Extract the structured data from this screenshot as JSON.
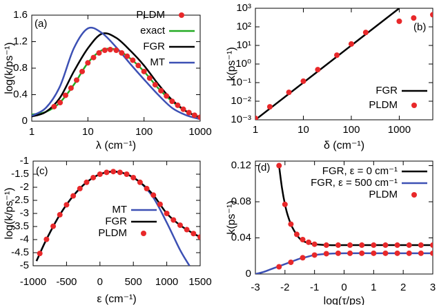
{
  "chart_data": [
    {
      "type": "line",
      "panel_label": "(a)",
      "xlabel": "λ (cm⁻¹)",
      "ylabel": "log(k/ps⁻¹)",
      "xscale": "log",
      "xlim": [
        1,
        1000
      ],
      "xticks": [
        1,
        10,
        100,
        1000
      ],
      "ylim": [
        0,
        1.6
      ],
      "yticks": [
        0,
        0.4,
        0.8,
        1.2,
        1.6
      ],
      "legend": "top-right",
      "series": [
        {
          "name": "PLDM",
          "mode": "markers",
          "color": "#e8282a",
          "x": [
            2.5,
            3.2,
            4,
            5,
            6.3,
            7.9,
            10,
            12.6,
            15.8,
            20,
            25,
            32,
            40,
            50,
            63,
            79,
            100,
            126,
            158,
            200,
            251,
            316,
            398,
            501,
            631,
            794,
            1000
          ],
          "values": [
            0.22,
            0.28,
            0.39,
            0.5,
            0.62,
            0.75,
            0.88,
            0.96,
            1.03,
            1.07,
            1.08,
            1.07,
            1.03,
            0.98,
            0.92,
            0.84,
            0.75,
            0.65,
            0.55,
            0.46,
            0.38,
            0.3,
            0.24,
            0.18,
            0.13,
            0.09,
            0.06
          ]
        },
        {
          "name": "exact",
          "mode": "lines",
          "color": "#22aa22",
          "x": [
            1,
            1.78,
            3.16,
            5.62,
            10,
            17.8,
            31.6,
            56.2,
            100,
            178,
            316,
            562,
            1000
          ],
          "values": [
            0.1,
            0.14,
            0.28,
            0.55,
            0.88,
            1.07,
            1.08,
            0.95,
            0.75,
            0.5,
            0.3,
            0.15,
            0.06
          ]
        },
        {
          "name": "FGR",
          "mode": "lines",
          "color": "#000000",
          "x": [
            1,
            1.78,
            3.16,
            5.62,
            10,
            17.8,
            31.6,
            56.2,
            100,
            178,
            316,
            562,
            1000
          ],
          "values": [
            0.07,
            0.14,
            0.35,
            0.75,
            1.1,
            1.32,
            1.26,
            1.07,
            0.84,
            0.56,
            0.32,
            0.15,
            0.05
          ]
        },
        {
          "name": "MT",
          "mode": "lines",
          "color": "#3c50b4",
          "x": [
            1,
            1.78,
            3.16,
            5.62,
            10,
            17.8,
            31.6,
            56.2,
            100,
            178,
            316,
            562,
            1000
          ],
          "values": [
            0.08,
            0.2,
            0.52,
            1.1,
            1.4,
            1.33,
            1.12,
            0.87,
            0.63,
            0.4,
            0.2,
            0.09,
            0.03
          ]
        }
      ]
    },
    {
      "type": "line",
      "panel_label": "(b)",
      "xlabel": "δ (cm⁻¹)",
      "ylabel": "k(ps⁻¹)",
      "xscale": "log",
      "yscale": "log",
      "xlim": [
        1,
        5000
      ],
      "xticks": [
        1,
        10,
        100,
        1000
      ],
      "ylim": [
        0.001,
        1000
      ],
      "yticks": [
        {
          "value": 0.001,
          "label": "10⁻³"
        },
        {
          "value": 0.01,
          "label": "10⁻²"
        },
        {
          "value": 0.1,
          "label": "10⁻¹"
        },
        {
          "value": 1,
          "label": "10⁰"
        },
        {
          "value": 10,
          "label": "10¹"
        },
        {
          "value": 100,
          "label": "10²"
        },
        {
          "value": 1000,
          "label": "10³"
        }
      ],
      "legend": "bottom-right",
      "series": [
        {
          "name": "FGR",
          "mode": "lines",
          "color": "#000000",
          "x": [
            1,
            1000
          ],
          "values": [
            0.001,
            1000
          ]
        },
        {
          "name": "PLDM",
          "mode": "markers",
          "color": "#e8282a",
          "x": [
            1,
            2,
            5,
            10,
            20,
            50,
            100,
            200,
            1000,
            2000,
            5000
          ],
          "values": [
            0.0012,
            0.005,
            0.03,
            0.12,
            0.5,
            3,
            12,
            50,
            200,
            300,
            450
          ]
        }
      ]
    },
    {
      "type": "line",
      "panel_label": "(c)",
      "xlabel": "ε (cm⁻¹)",
      "ylabel": "log(k/ps⁻¹)",
      "xlim": [
        -1000,
        1500
      ],
      "xticks": [
        -1000,
        -500,
        0,
        500,
        1000,
        1500
      ],
      "ylim": [
        -5,
        -1
      ],
      "yticks": [
        -1,
        -1.5,
        -2,
        -2.5,
        -3,
        -3.5,
        -4,
        -4.5,
        -5
      ],
      "legend": "bottom-left",
      "series": [
        {
          "name": "MT",
          "mode": "lines",
          "color": "#3c50b4",
          "x": [
            -950,
            -800,
            -600,
            -400,
            -200,
            0,
            200,
            400,
            600,
            800,
            1000,
            1200,
            1340
          ],
          "values": [
            -4.82,
            -3.99,
            -3.05,
            -2.33,
            -1.81,
            -1.5,
            -1.4,
            -1.5,
            -1.81,
            -2.4,
            -3.35,
            -4.4,
            -5
          ]
        },
        {
          "name": "FGR",
          "mode": "lines",
          "color": "#000000",
          "x": [
            -950,
            -800,
            -600,
            -400,
            -200,
            0,
            200,
            400,
            600,
            800,
            1000,
            1200,
            1400,
            1500
          ],
          "values": [
            -4.82,
            -3.99,
            -3.05,
            -2.33,
            -1.81,
            -1.5,
            -1.4,
            -1.5,
            -1.81,
            -2.3,
            -3,
            -3.45,
            -3.77,
            -3.9
          ]
        },
        {
          "name": "PLDM",
          "mode": "markers",
          "color": "#e8282a",
          "x": [
            -900,
            -800,
            -700,
            -600,
            -500,
            -400,
            -300,
            -200,
            -100,
            0,
            100,
            200,
            300,
            400,
            500,
            600,
            700,
            800,
            900,
            1000,
            1100,
            1200,
            1300,
            1400,
            1500
          ],
          "values": [
            -4.53,
            -3.99,
            -3.49,
            -3.05,
            -2.67,
            -2.33,
            -2.05,
            -1.81,
            -1.63,
            -1.5,
            -1.43,
            -1.4,
            -1.43,
            -1.5,
            -1.63,
            -1.81,
            -2.05,
            -2.3,
            -2.65,
            -3,
            -3.25,
            -3.45,
            -3.62,
            -3.77,
            -3.9
          ]
        }
      ]
    },
    {
      "type": "line",
      "panel_label": "(d)",
      "xlabel": "log(τ/ps)",
      "ylabel": "k(ps⁻¹)",
      "xlim": [
        -3,
        3
      ],
      "xticks": [
        -3,
        -2,
        -1,
        0,
        1,
        2,
        3
      ],
      "ylim": [
        0,
        0.125
      ],
      "yticks": [
        0,
        0.04,
        0.08,
        0.12
      ],
      "legend": "top-right",
      "series": [
        {
          "name": "FGR, ε = 0 cm⁻¹",
          "mode": "lines",
          "color": "#000000",
          "x": [
            -2.2,
            -2.1,
            -2,
            -1.9,
            -1.75,
            -1.5,
            -1.25,
            -1,
            -0.5,
            0,
            1,
            2,
            3
          ],
          "values": [
            0.12,
            0.0951,
            0.0771,
            0.0644,
            0.0516,
            0.0392,
            0.0347,
            0.033,
            0.032,
            0.032,
            0.032,
            0.032,
            0.032
          ]
        },
        {
          "name": "FGR, ε = 500 cm⁻¹",
          "mode": "lines",
          "color": "#3c50b4",
          "x": [
            -3,
            -2.75,
            -2.5,
            -2.25,
            -2,
            -1.75,
            -1.5,
            -1.25,
            -1,
            -0.5,
            0,
            1,
            2,
            3
          ],
          "values": [
            0,
            0.002,
            0.005,
            0.008,
            0.011,
            0.014,
            0.017,
            0.019,
            0.021,
            0.0225,
            0.023,
            0.023,
            0.023,
            0.023
          ]
        },
        {
          "name": "PLDM",
          "mode": "markers",
          "color": "#e8282a",
          "x": [
            -2.2,
            -2,
            -1.8,
            -1.6,
            -1.4,
            -1.2,
            -1,
            -0.6,
            -0.2,
            0.2,
            0.6,
            1,
            1.4,
            1.8,
            2.2,
            2.6,
            3,
            -2.2,
            -1.8,
            -1.4,
            -1,
            -0.6,
            -0.2,
            0.2,
            0.6,
            1,
            1.4,
            1.8,
            2.2,
            2.6,
            3
          ],
          "values": [
            0.12,
            0.0771,
            0.0552,
            0.0439,
            0.0381,
            0.0352,
            0.033,
            0.032,
            0.032,
            0.032,
            0.032,
            0.032,
            0.032,
            0.032,
            0.032,
            0.032,
            0.032,
            0.008,
            0.013,
            0.018,
            0.021,
            0.0225,
            0.023,
            0.023,
            0.023,
            0.023,
            0.023,
            0.023,
            0.023,
            0.023,
            0.023
          ]
        }
      ]
    }
  ]
}
